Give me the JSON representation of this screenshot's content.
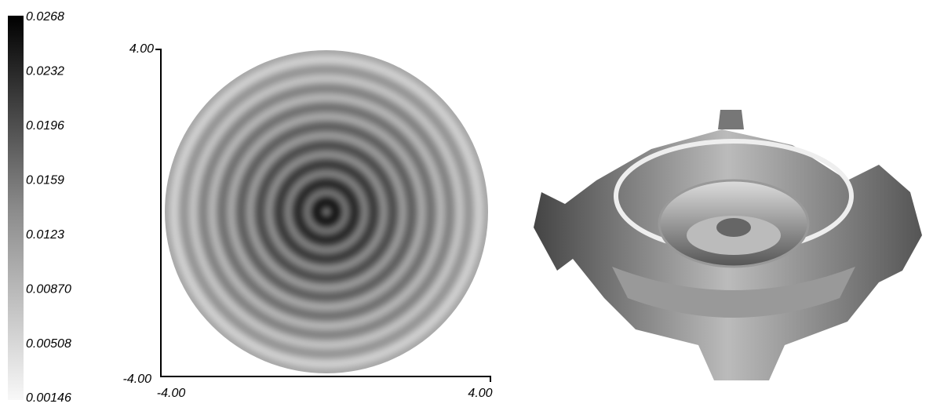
{
  "colorbar": {
    "labels": [
      "0.0268",
      "0.0232",
      "0.0196",
      "0.0159",
      "0.0123",
      "0.00870",
      "0.00508",
      "0.00146"
    ]
  },
  "plot": {
    "y_top": "4.00",
    "y_bottom": "-4.00",
    "x_left": "-4.00",
    "x_right": "4.00"
  }
}
